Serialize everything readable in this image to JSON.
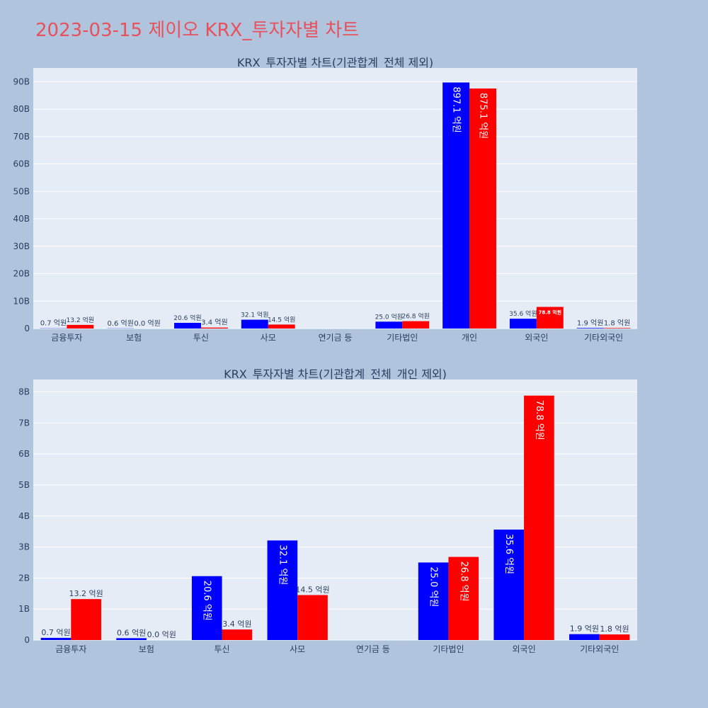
{
  "title": "2023-03-15 제이오 KRX_투자자별 차트",
  "colors": {
    "buy": "#0000ff",
    "sell": "#ff0000",
    "plot_bg": "#e5ecf6",
    "page_bg": "#b0c4de",
    "title": "#e8505b"
  },
  "chart_data": [
    {
      "type": "bar",
      "title": "KRX_투자자별 차트(기관합계_전체 제외)",
      "categories": [
        "금융투자",
        "보험",
        "투신",
        "사모",
        "연기금 등",
        "기타법인",
        "개인",
        "외국인",
        "기타외국인"
      ],
      "series": [
        {
          "color": "#0000ff",
          "values": [
            70000000,
            60000000,
            2060000000,
            3210000000,
            0,
            2500000000,
            89710000000,
            3560000000,
            190000000
          ],
          "labels": [
            "0.7 억원",
            "0.6 억원",
            "20.6 억원",
            "32.1 억원",
            "",
            "25.0 억원",
            "897.1 억원",
            "35.6 억원",
            "1.9 억원"
          ]
        },
        {
          "color": "#ff0000",
          "values": [
            1320000000,
            0,
            340000000,
            1450000000,
            0,
            2680000000,
            87510000000,
            7880000000,
            180000000
          ],
          "labels": [
            "13.2 억원",
            "0.0 억원",
            "3.4 억원",
            "14.5 억원",
            "",
            "26.8 억원",
            "875.1 억원",
            "78.8 억원",
            "1.8 억원"
          ]
        }
      ],
      "ylim": [
        0,
        95000000000
      ],
      "yticks": [
        0,
        10000000000,
        20000000000,
        30000000000,
        40000000000,
        50000000000,
        60000000000,
        70000000000,
        80000000000,
        90000000000
      ],
      "ytick_labels": [
        "0",
        "10B",
        "20B",
        "30B",
        "40B",
        "50B",
        "60B",
        "70B",
        "80B",
        "90B"
      ],
      "grid": true,
      "legend": "none"
    },
    {
      "type": "bar",
      "title": "KRX_투자자별 차트(기관합계_전체_개인 제외)",
      "categories": [
        "금융투자",
        "보험",
        "투신",
        "사모",
        "연기금 등",
        "기타법인",
        "외국인",
        "기타외국인"
      ],
      "series": [
        {
          "color": "#0000ff",
          "values": [
            70000000,
            60000000,
            2060000000,
            3210000000,
            0,
            2500000000,
            3560000000,
            190000000
          ],
          "labels": [
            "0.7 억원",
            "0.6 억원",
            "20.6 억원",
            "32.1 억원",
            "",
            "25.0 억원",
            "35.6 억원",
            "1.9 억원"
          ]
        },
        {
          "color": "#ff0000",
          "values": [
            1320000000,
            0,
            340000000,
            1450000000,
            0,
            2680000000,
            7880000000,
            180000000
          ],
          "labels": [
            "13.2 억원",
            "0.0 억원",
            "3.4 억원",
            "14.5 억원",
            "",
            "26.8 억원",
            "78.8 억원",
            "1.8 억원"
          ]
        }
      ],
      "ylim": [
        0,
        8400000000
      ],
      "yticks": [
        0,
        1000000000,
        2000000000,
        3000000000,
        4000000000,
        5000000000,
        6000000000,
        7000000000,
        8000000000
      ],
      "ytick_labels": [
        "0",
        "1B",
        "2B",
        "3B",
        "4B",
        "5B",
        "6B",
        "7B",
        "8B"
      ],
      "grid": true,
      "legend": "none"
    }
  ]
}
